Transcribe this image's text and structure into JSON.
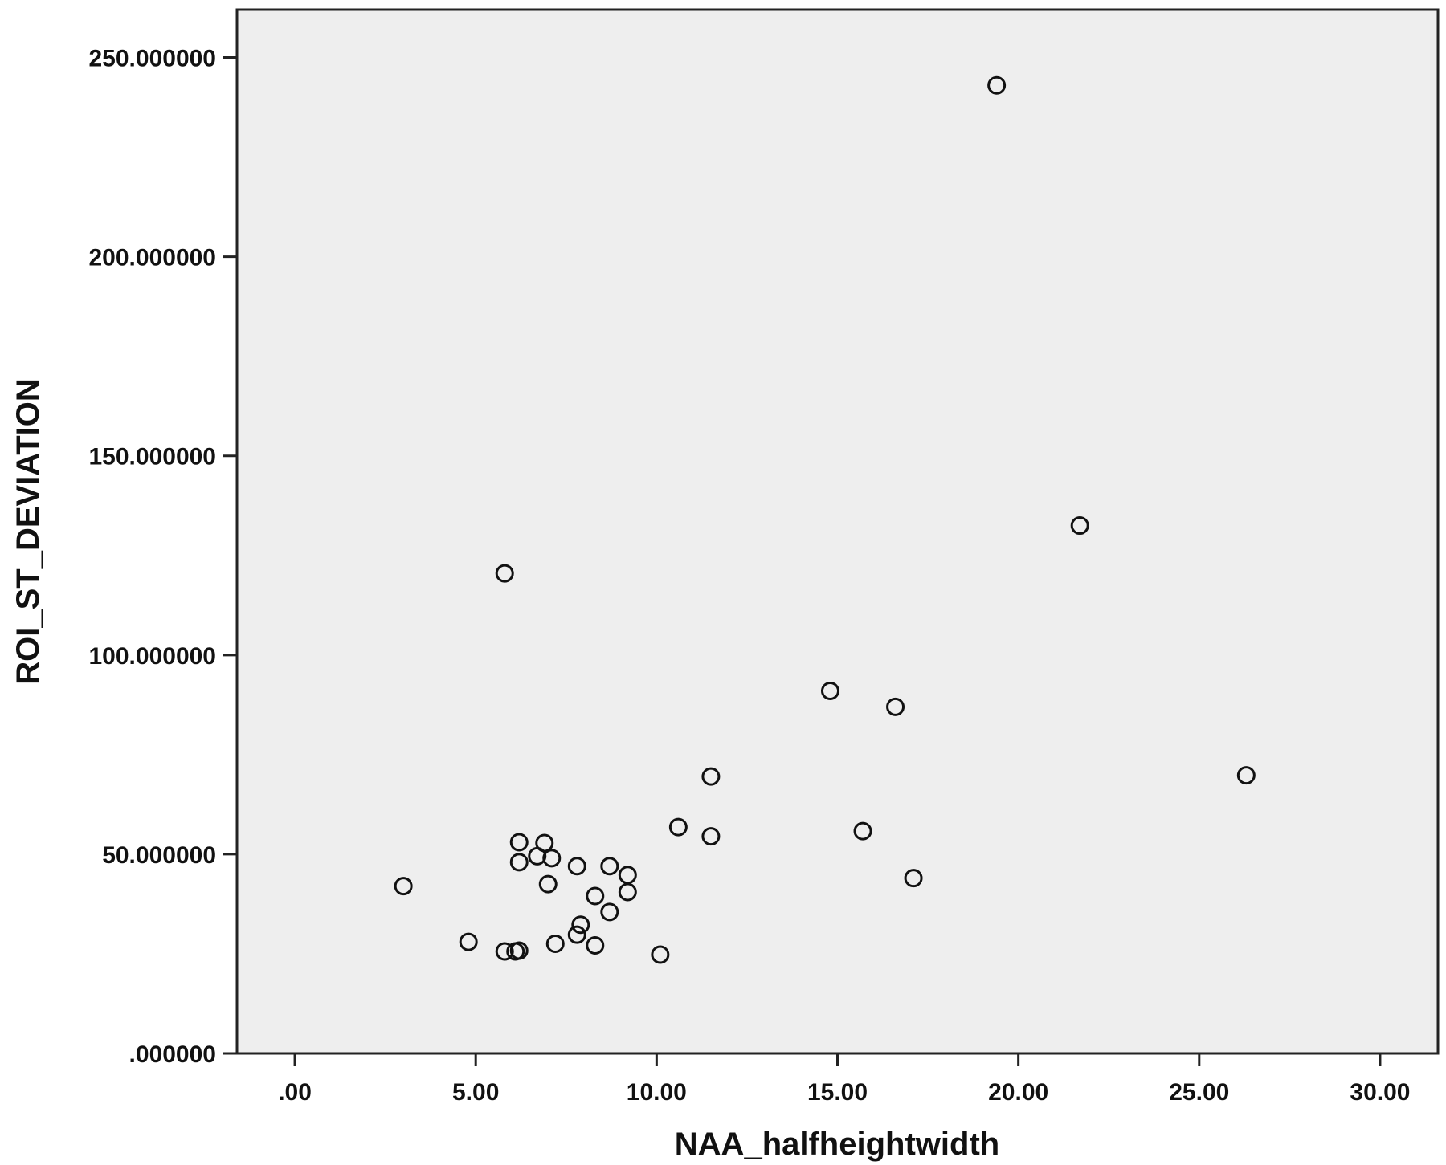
{
  "chart_data": {
    "type": "scatter",
    "title": "",
    "xlabel": "NAA_halfheightwidth",
    "ylabel": "ROI_ST_DEVIATION",
    "xlim": [
      -1.6,
      31.6
    ],
    "ylim": [
      0,
      262
    ],
    "x_ticks": [
      0,
      5,
      10,
      15,
      20,
      25,
      30
    ],
    "x_tick_labels": [
      ".00",
      "5.00",
      "10.00",
      "15.00",
      "20.00",
      "25.00",
      "30.00"
    ],
    "y_ticks": [
      0,
      50,
      100,
      150,
      200,
      250
    ],
    "y_tick_labels": [
      ".000000",
      "50.000000",
      "100.000000",
      "150.000000",
      "200.000000",
      "250.000000"
    ],
    "grid": false,
    "legend": "none",
    "plot_background": "#eeeeee",
    "marker_color": "#111111",
    "series": [
      {
        "points": [
          {
            "x": 3.0,
            "y": 42.0
          },
          {
            "x": 4.8,
            "y": 28.0
          },
          {
            "x": 5.8,
            "y": 25.6
          },
          {
            "x": 6.1,
            "y": 25.6
          },
          {
            "x": 6.2,
            "y": 25.8
          },
          {
            "x": 5.8,
            "y": 120.5
          },
          {
            "x": 6.2,
            "y": 53.0
          },
          {
            "x": 6.2,
            "y": 48.0
          },
          {
            "x": 6.7,
            "y": 49.5
          },
          {
            "x": 6.9,
            "y": 52.8
          },
          {
            "x": 7.0,
            "y": 42.5
          },
          {
            "x": 7.1,
            "y": 49.0
          },
          {
            "x": 7.2,
            "y": 27.5
          },
          {
            "x": 7.8,
            "y": 47.0
          },
          {
            "x": 7.8,
            "y": 29.8
          },
          {
            "x": 7.9,
            "y": 32.3
          },
          {
            "x": 8.3,
            "y": 39.5
          },
          {
            "x": 8.3,
            "y": 27.1
          },
          {
            "x": 8.7,
            "y": 47.0
          },
          {
            "x": 8.7,
            "y": 35.5
          },
          {
            "x": 9.2,
            "y": 44.8
          },
          {
            "x": 9.2,
            "y": 40.5
          },
          {
            "x": 10.1,
            "y": 24.8
          },
          {
            "x": 10.6,
            "y": 56.8
          },
          {
            "x": 11.5,
            "y": 69.5
          },
          {
            "x": 11.5,
            "y": 54.5
          },
          {
            "x": 14.8,
            "y": 91.0
          },
          {
            "x": 15.7,
            "y": 55.8
          },
          {
            "x": 16.6,
            "y": 87.0
          },
          {
            "x": 17.1,
            "y": 44.0
          },
          {
            "x": 19.4,
            "y": 243.0
          },
          {
            "x": 21.7,
            "y": 132.5
          },
          {
            "x": 26.3,
            "y": 69.8
          }
        ]
      }
    ]
  }
}
